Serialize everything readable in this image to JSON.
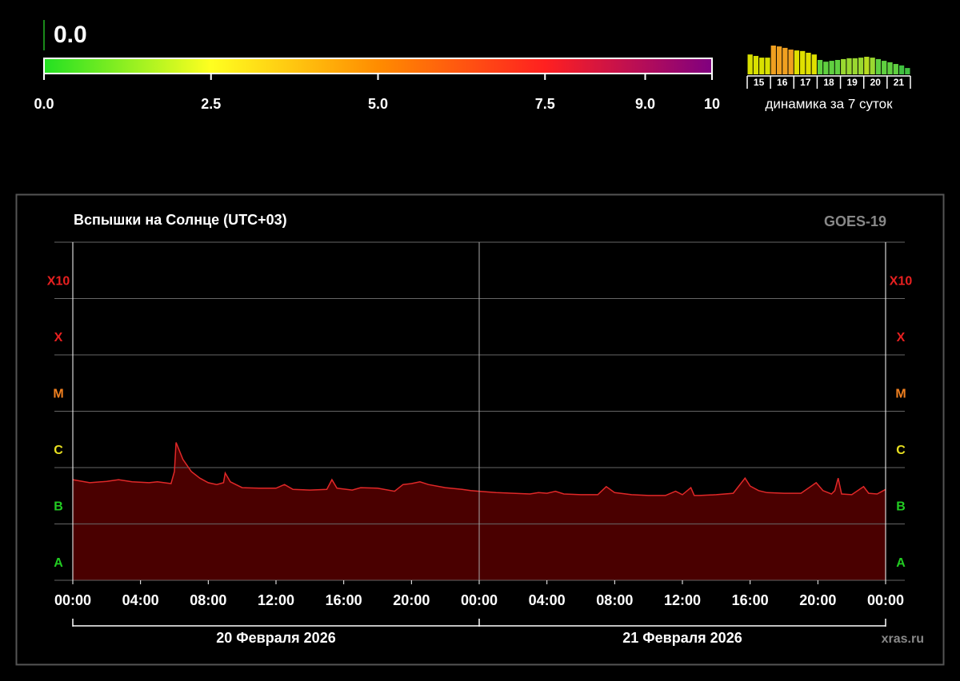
{
  "chart_data": [
    {
      "type": "gauge",
      "value": 0,
      "value_label": "0.0",
      "xlim": [
        0,
        10
      ],
      "xticks": [
        {
          "value": 0,
          "label": "0.0"
        },
        {
          "value": 2.5,
          "label": "2.5"
        },
        {
          "value": 5,
          "label": "5.0"
        },
        {
          "value": 7.5,
          "label": "7.5"
        },
        {
          "value": 9,
          "label": "9.0"
        },
        10
      ],
      "colors": [
        "#22e022",
        "#ffff20",
        "#ff8c00",
        "#ff2020",
        "#800080"
      ],
      "marker_color": "#1a8a1a"
    },
    {
      "type": "bar",
      "groups": [
        "15",
        "16",
        "17",
        "18",
        "19",
        "20",
        "21"
      ],
      "values": [
        6.9,
        6.4,
        5.8,
        5.8,
        10,
        9.7,
        9.2,
        8.6,
        8.3,
        8.1,
        7.5,
        6.9,
        5,
        4.4,
        4.7,
        5,
        5.3,
        5.6,
        5.6,
        5.8,
        6.1,
        5.8,
        5.3,
        4.7,
        4.2,
        3.6,
        3.1,
        2.2
      ],
      "colors": [
        "#d8e000",
        "#d8e000",
        "#d8e000",
        "#d8e000",
        "#f0a020",
        "#f0a020",
        "#f0a020",
        "#f0a020",
        "#e0e000",
        "#e0e000",
        "#e0e000",
        "#e0e000",
        "#60d040",
        "#60d040",
        "#60d040",
        "#60d040",
        "#9ad830",
        "#9ad830",
        "#9ad830",
        "#9ad830",
        "#b8dc20",
        "#9ad830",
        "#60d040",
        "#60d040",
        "#60d040",
        "#60d040",
        "#40c040",
        "#40c040"
      ],
      "ylim": [
        0,
        10
      ],
      "caption": "динамика за 7 суток"
    },
    {
      "type": "area",
      "title": "Вспышки на Солнце (UTC+03)",
      "source": "GOES-19",
      "footer": "xras.ru",
      "x": [
        0,
        1,
        2,
        2.7,
        3.5,
        4.5,
        5,
        5.8,
        6,
        6.1,
        6.5,
        7,
        7.5,
        8,
        8.5,
        8.9,
        9,
        9.3,
        10,
        11,
        12,
        12.5,
        13,
        14,
        15,
        15.3,
        15.6,
        16.5,
        17,
        18,
        19,
        19.5,
        20,
        20.5,
        21,
        22,
        23,
        23.5,
        24,
        25,
        26,
        27,
        27.5,
        28,
        28.5,
        29,
        30,
        31,
        31.5,
        32,
        33,
        34,
        35,
        35.6,
        36,
        36.5,
        36.7,
        37,
        38,
        39,
        39.7,
        40,
        40.5,
        41,
        42,
        43,
        43.9,
        44.3,
        44.8,
        45,
        45.2,
        45.4,
        46,
        46.7,
        47,
        47.5,
        48
      ],
      "values": [
        6.1e-07,
        5.4e-07,
        5.7e-07,
        6.1e-07,
        5.6e-07,
        5.4e-07,
        5.6e-07,
        5.2e-07,
        8.5e-07,
        2.8e-06,
        1.4e-06,
        8.5e-07,
        6.5e-07,
        5.4e-07,
        5e-07,
        5.4e-07,
        8e-07,
        5.6e-07,
        4.4e-07,
        4.3e-07,
        4.3e-07,
        5e-07,
        4.1e-07,
        4e-07,
        4.1e-07,
        6.1e-07,
        4.3e-07,
        4e-07,
        4.4e-07,
        4.3e-07,
        3.8e-07,
        5e-07,
        5.2e-07,
        5.6e-07,
        5e-07,
        4.4e-07,
        4.1e-07,
        3.9e-07,
        3.8e-07,
        3.6e-07,
        3.5e-07,
        3.4e-07,
        3.6e-07,
        3.5e-07,
        3.8e-07,
        3.4e-07,
        3.3e-07,
        3.3e-07,
        4.6e-07,
        3.6e-07,
        3.3e-07,
        3.2e-07,
        3.2e-07,
        3.8e-07,
        3.3e-07,
        4.4e-07,
        3.2e-07,
        3.2e-07,
        3.3e-07,
        3.5e-07,
        6.5e-07,
        4.7e-07,
        3.9e-07,
        3.6e-07,
        3.5e-07,
        3.5e-07,
        5.4e-07,
        3.9e-07,
        3.4e-07,
        3.9e-07,
        6.5e-07,
        3.4e-07,
        3.3e-07,
        4.6e-07,
        3.5e-07,
        3.4e-07,
        4.1e-07
      ],
      "color": "#e02828",
      "fill": "#4a0000",
      "ylim": [
        1e-08,
        0.01
      ],
      "ylog": true,
      "yticks": [
        {
          "value": 1e-08,
          "label": "A"
        },
        {
          "value": 1e-07,
          "label": "B"
        },
        {
          "value": 1e-06,
          "label": "C"
        },
        {
          "value": 1e-05,
          "label": "M"
        },
        {
          "value": 0.0001,
          "label": "X"
        },
        {
          "value": 0.001,
          "label": "X10"
        }
      ],
      "ytick_colors": [
        "#22cc22",
        "#22cc22",
        "#e8e020",
        "#f08020",
        "#e82020",
        "#e82020"
      ],
      "xlim": [
        0,
        48
      ],
      "xticks": [
        {
          "value": 0,
          "label": "00:00"
        },
        {
          "value": 4,
          "label": "04:00"
        },
        {
          "value": 8,
          "label": "08:00"
        },
        {
          "value": 12,
          "label": "12:00"
        },
        {
          "value": 16,
          "label": "16:00"
        },
        {
          "value": 20,
          "label": "20:00"
        },
        {
          "value": 24,
          "label": "00:00"
        },
        {
          "value": 28,
          "label": "04:00"
        },
        {
          "value": 32,
          "label": "08:00"
        },
        {
          "value": 36,
          "label": "12:00"
        },
        {
          "value": 40,
          "label": "16:00"
        },
        {
          "value": 44,
          "label": "20:00"
        },
        {
          "value": 48,
          "label": "00:00"
        }
      ],
      "dates": [
        "20 Февраля 2026",
        "21 Февраля 2026"
      ]
    }
  ]
}
